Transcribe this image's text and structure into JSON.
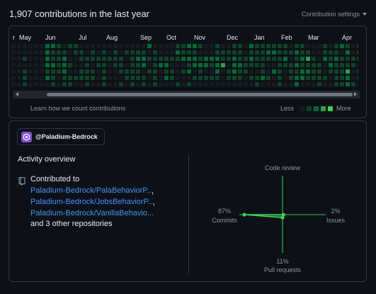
{
  "header": {
    "title": "1,907 contributions in the last year",
    "settings_label": "Contribution settings"
  },
  "calendar": {
    "months": [
      "r",
      "May",
      "Jun",
      "Jul",
      "Aug",
      "Sep",
      "Oct",
      "Nov",
      "Dec",
      "Jan",
      "Feb",
      "Mar",
      "Apr"
    ],
    "levels": [
      [
        0,
        0,
        0,
        0,
        0,
        0,
        0
      ],
      [
        0,
        0,
        0,
        0,
        0,
        0,
        0
      ],
      [
        0,
        0,
        1,
        0,
        1,
        1,
        1
      ],
      [
        0,
        0,
        0,
        0,
        0,
        0,
        0
      ],
      [
        0,
        0,
        0,
        0,
        0,
        0,
        0
      ],
      [
        0,
        0,
        0,
        0,
        0,
        0,
        0
      ],
      [
        2,
        2,
        2,
        2,
        1,
        2,
        0
      ],
      [
        2,
        1,
        1,
        2,
        1,
        1,
        1
      ],
      [
        1,
        1,
        1,
        1,
        1,
        0,
        0
      ],
      [
        0,
        1,
        2,
        2,
        2,
        1,
        1
      ],
      [
        1,
        0,
        0,
        1,
        0,
        1,
        1
      ],
      [
        1,
        1,
        0,
        0,
        0,
        1,
        0
      ],
      [
        0,
        1,
        1,
        0,
        1,
        1,
        0
      ],
      [
        0,
        0,
        1,
        1,
        1,
        1,
        1
      ],
      [
        0,
        1,
        1,
        0,
        1,
        1,
        0
      ],
      [
        0,
        0,
        1,
        1,
        0,
        0,
        0
      ],
      [
        0,
        1,
        1,
        1,
        1,
        1,
        1
      ],
      [
        0,
        0,
        1,
        0,
        0,
        0,
        0
      ],
      [
        0,
        1,
        1,
        1,
        0,
        0,
        0
      ],
      [
        0,
        0,
        1,
        1,
        1,
        0,
        1
      ],
      [
        0,
        1,
        0,
        0,
        1,
        1,
        0
      ],
      [
        0,
        1,
        1,
        1,
        1,
        1,
        1
      ],
      [
        0,
        1,
        2,
        1,
        1,
        1,
        0
      ],
      [
        0,
        1,
        2,
        2,
        0,
        1,
        1
      ],
      [
        2,
        0,
        1,
        0,
        1,
        0,
        0
      ],
      [
        0,
        1,
        1,
        1,
        1,
        1,
        1
      ],
      [
        0,
        0,
        1,
        2,
        0,
        0,
        0
      ],
      [
        0,
        0,
        1,
        2,
        1,
        2,
        0
      ],
      [
        0,
        0,
        1,
        0,
        1,
        1,
        0
      ],
      [
        1,
        2,
        1,
        0,
        0,
        0,
        1
      ],
      [
        1,
        1,
        2,
        0,
        1,
        0,
        0
      ],
      [
        2,
        1,
        2,
        1,
        2,
        0,
        1
      ],
      [
        2,
        1,
        2,
        2,
        0,
        1,
        0
      ],
      [
        1,
        0,
        1,
        2,
        1,
        1,
        0
      ],
      [
        0,
        0,
        2,
        2,
        0,
        1,
        0
      ],
      [
        0,
        0,
        2,
        1,
        0,
        1,
        0
      ],
      [
        1,
        1,
        2,
        2,
        2,
        1,
        0
      ],
      [
        0,
        1,
        1,
        3,
        0,
        0,
        0
      ],
      [
        0,
        1,
        1,
        0,
        1,
        1,
        0
      ],
      [
        1,
        1,
        2,
        2,
        2,
        1,
        0
      ],
      [
        1,
        1,
        1,
        2,
        1,
        1,
        0
      ],
      [
        0,
        0,
        1,
        1,
        1,
        0,
        0
      ],
      [
        2,
        1,
        2,
        1,
        0,
        1,
        0
      ],
      [
        1,
        1,
        1,
        1,
        0,
        1,
        1
      ],
      [
        1,
        1,
        1,
        1,
        1,
        2,
        0
      ],
      [
        1,
        2,
        1,
        0,
        0,
        1,
        0
      ],
      [
        1,
        2,
        1,
        0,
        2,
        0,
        0
      ],
      [
        1,
        1,
        1,
        1,
        1,
        1,
        1
      ],
      [
        1,
        1,
        2,
        1,
        0,
        0,
        0
      ],
      [
        0,
        1,
        0,
        1,
        1,
        1,
        0
      ],
      [
        1,
        2,
        1,
        2,
        1,
        2,
        2
      ],
      [
        1,
        1,
        2,
        1,
        2,
        2,
        0
      ],
      [
        0,
        1,
        3,
        1,
        2,
        1,
        0
      ],
      [
        0,
        0,
        1,
        1,
        1,
        1,
        0
      ],
      [
        0,
        0,
        0,
        1,
        1,
        1,
        1
      ],
      [
        1,
        1,
        2,
        0,
        0,
        1,
        0
      ],
      [
        0,
        1,
        1,
        2,
        1,
        0,
        0
      ],
      [
        1,
        1,
        2,
        1,
        1,
        1,
        1
      ],
      [
        2,
        0,
        1,
        1,
        1,
        1,
        1
      ],
      [
        1,
        2,
        1,
        1,
        3,
        2,
        2
      ],
      [
        0,
        0,
        1,
        1,
        0,
        0,
        1
      ],
      [
        1,
        1,
        1,
        0,
        1,
        1,
        0
      ],
      [
        1,
        0,
        1,
        0,
        1,
        0,
        0
      ],
      [
        1,
        2,
        1,
        1,
        2,
        1,
        1
      ],
      [
        1,
        1,
        1,
        1,
        1,
        1,
        1
      ],
      [
        0,
        1,
        0,
        1,
        1,
        1,
        1
      ],
      [
        0,
        1,
        2,
        3,
        1,
        1,
        1
      ],
      [
        1,
        1,
        2,
        1,
        1,
        2,
        1
      ],
      [
        0,
        1,
        1,
        1,
        2,
        1,
        1
      ],
      [
        0,
        0,
        1,
        1,
        1,
        0,
        1
      ]
    ],
    "colors": [
      "#161b22",
      "#0e4429",
      "#006d32",
      "#26a641",
      "#39d353"
    ],
    "learn_link": "Learn how we count contributions",
    "legend_less": "Less",
    "legend_more": "More"
  },
  "org": {
    "label": "@Paladium-Bedrock",
    "icon": "org-logo-icon"
  },
  "activity": {
    "title": "Activity overview",
    "contributed_to": "Contributed to",
    "repos": [
      "Paladium-Bedrock/PalaBehaviorP...",
      "Paladium-Bedrock/JobsBehaviorP...",
      "Paladium-Bedrock/VanillaBehavio..."
    ],
    "comma": ",",
    "others": "and 3 other repositories"
  },
  "axes": {
    "code_review": {
      "label": "Code review",
      "pct": ""
    },
    "commits": {
      "label": "Commits",
      "pct": "87%",
      "value": 87
    },
    "issues": {
      "label": "Issues",
      "pct": "2%",
      "value": 2
    },
    "pull_requests": {
      "label": "Pull requests",
      "pct": "11%",
      "value": 11
    }
  }
}
